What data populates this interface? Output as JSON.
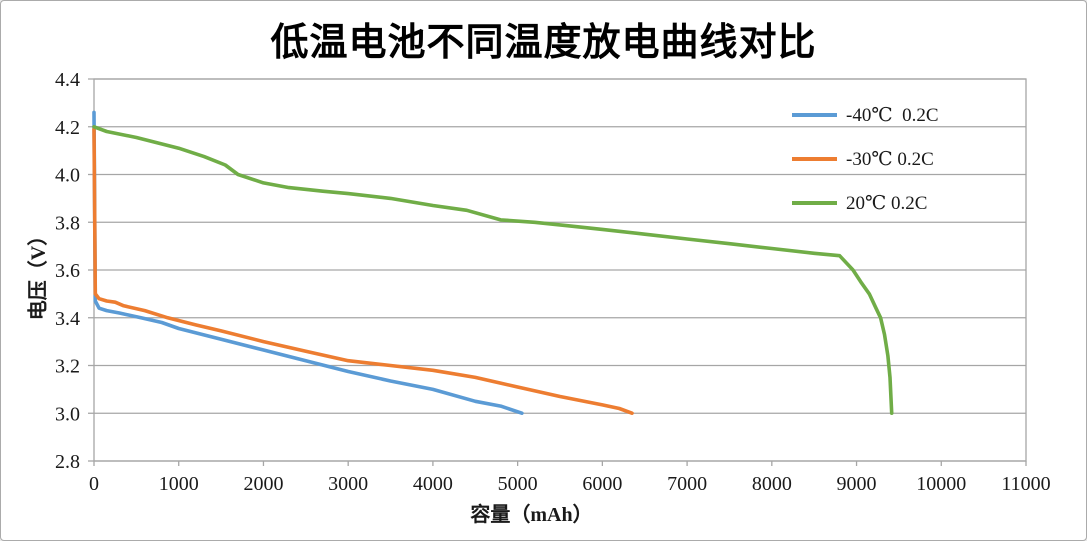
{
  "chart_data": {
    "type": "line",
    "title": "低温电池不同温度放电曲线对比",
    "xlabel": "容量（mAh）",
    "ylabel": "电压（V）",
    "xlim": [
      0,
      11000
    ],
    "ylim": [
      2.8,
      4.4
    ],
    "xticks": [
      0,
      1000,
      2000,
      3000,
      4000,
      5000,
      6000,
      7000,
      8000,
      9000,
      10000,
      11000
    ],
    "yticks": [
      2.8,
      3.0,
      3.2,
      3.4,
      3.6,
      3.8,
      4.0,
      4.2,
      4.4
    ],
    "grid": "horizontal",
    "legend_position": "inside-top-right",
    "series": [
      {
        "name": "-40℃  0.2C",
        "color": "#5B9BD5",
        "points": [
          [
            0,
            4.26
          ],
          [
            15,
            3.47
          ],
          [
            60,
            3.44
          ],
          [
            150,
            3.43
          ],
          [
            300,
            3.42
          ],
          [
            555,
            3.4
          ],
          [
            800,
            3.38
          ],
          [
            1000,
            3.355
          ],
          [
            1500,
            3.31
          ],
          [
            2000,
            3.265
          ],
          [
            2500,
            3.22
          ],
          [
            3000,
            3.175
          ],
          [
            3500,
            3.135
          ],
          [
            4000,
            3.1
          ],
          [
            4500,
            3.05
          ],
          [
            4800,
            3.03
          ],
          [
            5050,
            3.0
          ]
        ]
      },
      {
        "name": "-30℃ 0.2C",
        "color": "#ED7D31",
        "points": [
          [
            0,
            4.19
          ],
          [
            15,
            3.5
          ],
          [
            60,
            3.48
          ],
          [
            150,
            3.47
          ],
          [
            250,
            3.465
          ],
          [
            350,
            3.45
          ],
          [
            600,
            3.43
          ],
          [
            870,
            3.4
          ],
          [
            1200,
            3.37
          ],
          [
            1500,
            3.345
          ],
          [
            2000,
            3.3
          ],
          [
            2500,
            3.26
          ],
          [
            3000,
            3.22
          ],
          [
            3500,
            3.2
          ],
          [
            4000,
            3.18
          ],
          [
            4500,
            3.15
          ],
          [
            5000,
            3.11
          ],
          [
            5500,
            3.07
          ],
          [
            6000,
            3.035
          ],
          [
            6200,
            3.02
          ],
          [
            6350,
            3.0
          ]
        ]
      },
      {
        "name": "20℃ 0.2C",
        "color": "#70AD47",
        "points": [
          [
            0,
            4.2
          ],
          [
            150,
            4.18
          ],
          [
            500,
            4.155
          ],
          [
            1000,
            4.11
          ],
          [
            1300,
            4.075
          ],
          [
            1550,
            4.04
          ],
          [
            1700,
            4.0
          ],
          [
            2000,
            3.965
          ],
          [
            2300,
            3.945
          ],
          [
            2700,
            3.93
          ],
          [
            3000,
            3.92
          ],
          [
            3500,
            3.9
          ],
          [
            4000,
            3.87
          ],
          [
            4400,
            3.85
          ],
          [
            4800,
            3.81
          ],
          [
            5200,
            3.8
          ],
          [
            5600,
            3.785
          ],
          [
            6000,
            3.77
          ],
          [
            6500,
            3.75
          ],
          [
            7000,
            3.73
          ],
          [
            7500,
            3.71
          ],
          [
            8000,
            3.69
          ],
          [
            8500,
            3.67
          ],
          [
            8800,
            3.66
          ],
          [
            8958,
            3.6
          ],
          [
            9050,
            3.55
          ],
          [
            9150,
            3.5
          ],
          [
            9230,
            3.44
          ],
          [
            9284,
            3.4
          ],
          [
            9330,
            3.33
          ],
          [
            9370,
            3.24
          ],
          [
            9395,
            3.15
          ],
          [
            9415,
            3.0
          ]
        ]
      }
    ],
    "colors": {
      "grid": "#a6a6a6",
      "axis": "#8c8c8c",
      "tick_text": "#1a1a1a",
      "background": "#ffffff",
      "frame_border": "#ababab"
    }
  }
}
